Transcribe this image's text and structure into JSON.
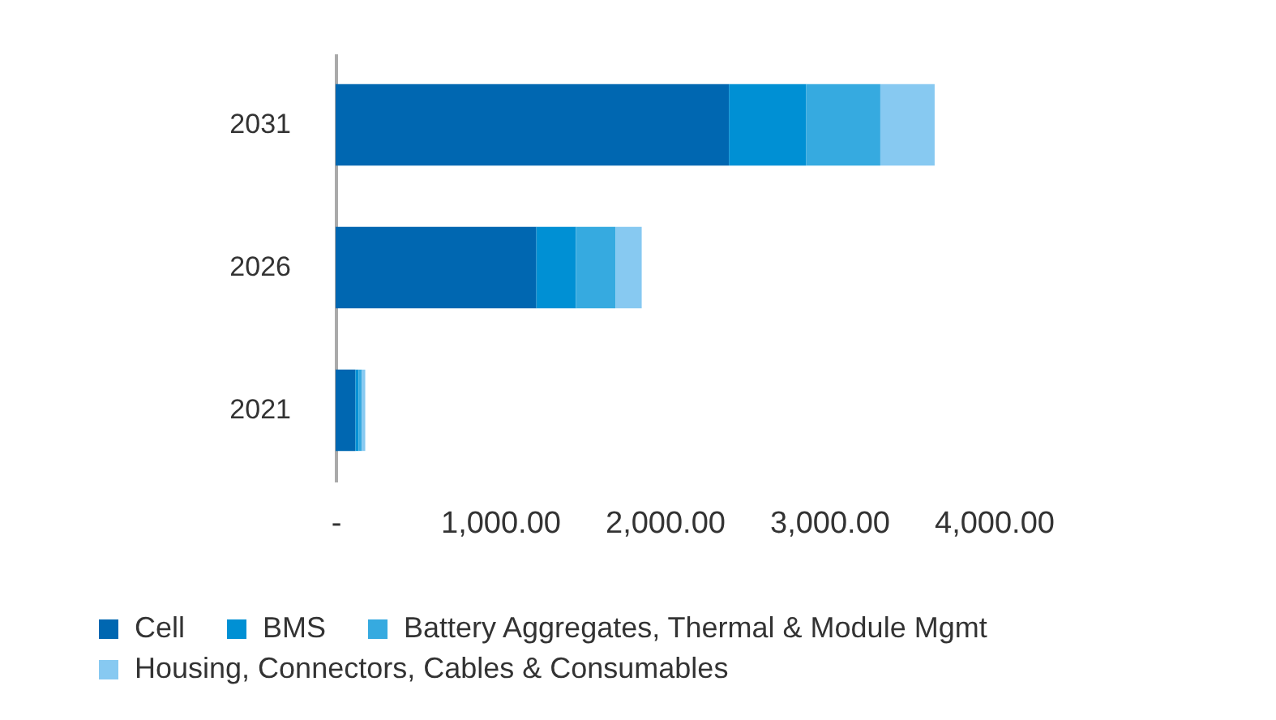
{
  "chart_data": {
    "type": "bar",
    "orientation": "horizontal",
    "stacked": true,
    "categories": [
      "2031",
      "2026",
      "2021"
    ],
    "series": [
      {
        "name": "Cell",
        "color": "#0067b1",
        "values": [
          2390,
          1220,
          120
        ]
      },
      {
        "name": "BMS",
        "color": "#0090d4",
        "values": [
          470,
          240,
          20
        ]
      },
      {
        "name": "Battery Aggregates, Thermal & Module Mgmt",
        "color": "#36aae0",
        "values": [
          450,
          240,
          20
        ]
      },
      {
        "name": "Housing, Connectors, Cables & Consumables",
        "color": "#87c9f1",
        "values": [
          330,
          160,
          20
        ]
      }
    ],
    "xlim": [
      0,
      4000
    ],
    "xticks": [
      {
        "value": 0,
        "label": "-"
      },
      {
        "value": 1000,
        "label": "1,000.00"
      },
      {
        "value": 2000,
        "label": "2,000.00"
      },
      {
        "value": 3000,
        "label": "3,000.00"
      },
      {
        "value": 4000,
        "label": "4,000.00"
      }
    ],
    "grid": false,
    "legend": "bottom"
  }
}
